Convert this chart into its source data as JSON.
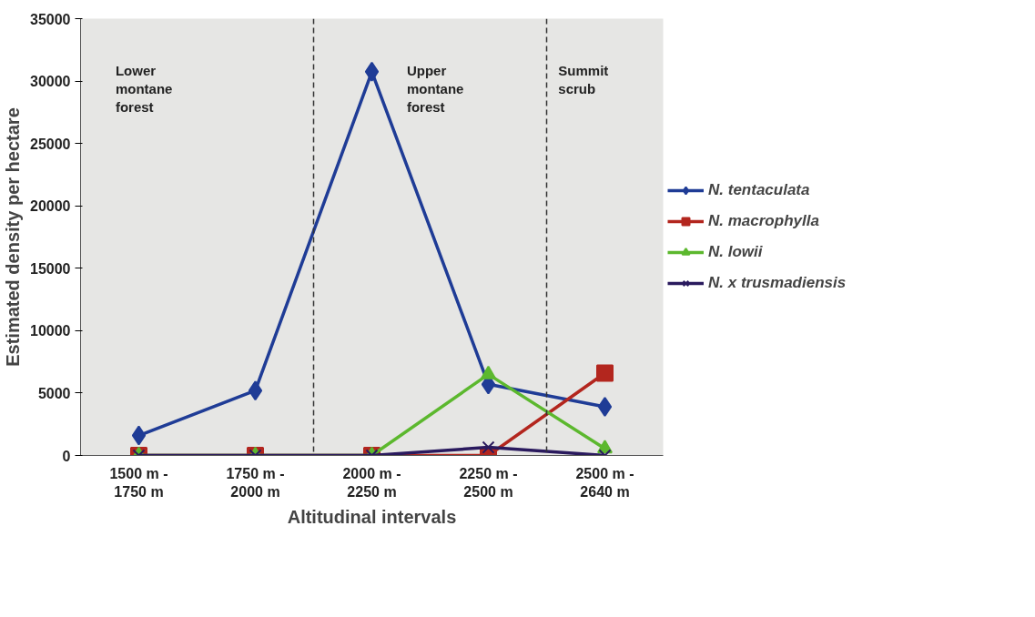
{
  "chart_data": {
    "type": "line",
    "xlabel": "Altitudinal intervals",
    "ylabel": "Estimated density per hectare",
    "categories": [
      "1500 m -\n1750 m",
      "1750 m -\n2000 m",
      "2000 m -\n2250 m",
      "2250 m -\n2500 m",
      "2500 m -\n2640 m"
    ],
    "series": [
      {
        "name": "N. tentaculata",
        "color": "#1f3c96",
        "marker": "diamond",
        "values": [
          1600,
          5200,
          30750,
          5700,
          3900
        ]
      },
      {
        "name": "N. macrophylla",
        "color": "#b3261e",
        "marker": "square",
        "values": [
          0,
          0,
          0,
          0,
          6600
        ]
      },
      {
        "name": "N. lowii",
        "color": "#5cb82e",
        "marker": "triangle",
        "values": [
          0,
          0,
          0,
          6500,
          550
        ]
      },
      {
        "name": "N. x trusmadiensis",
        "color": "#2a1a5e",
        "marker": "cross",
        "values": [
          0,
          0,
          0,
          650,
          0
        ]
      }
    ],
    "annotations": [
      "Lower\nmontane\nforest",
      "Upper\nmontane\nforest",
      "Summit\nscrub"
    ],
    "ylim": [
      0,
      35000
    ],
    "yticks": [
      0,
      5000,
      10000,
      15000,
      20000,
      25000,
      30000,
      35000
    ],
    "legend": "right",
    "line_style": "solid"
  }
}
